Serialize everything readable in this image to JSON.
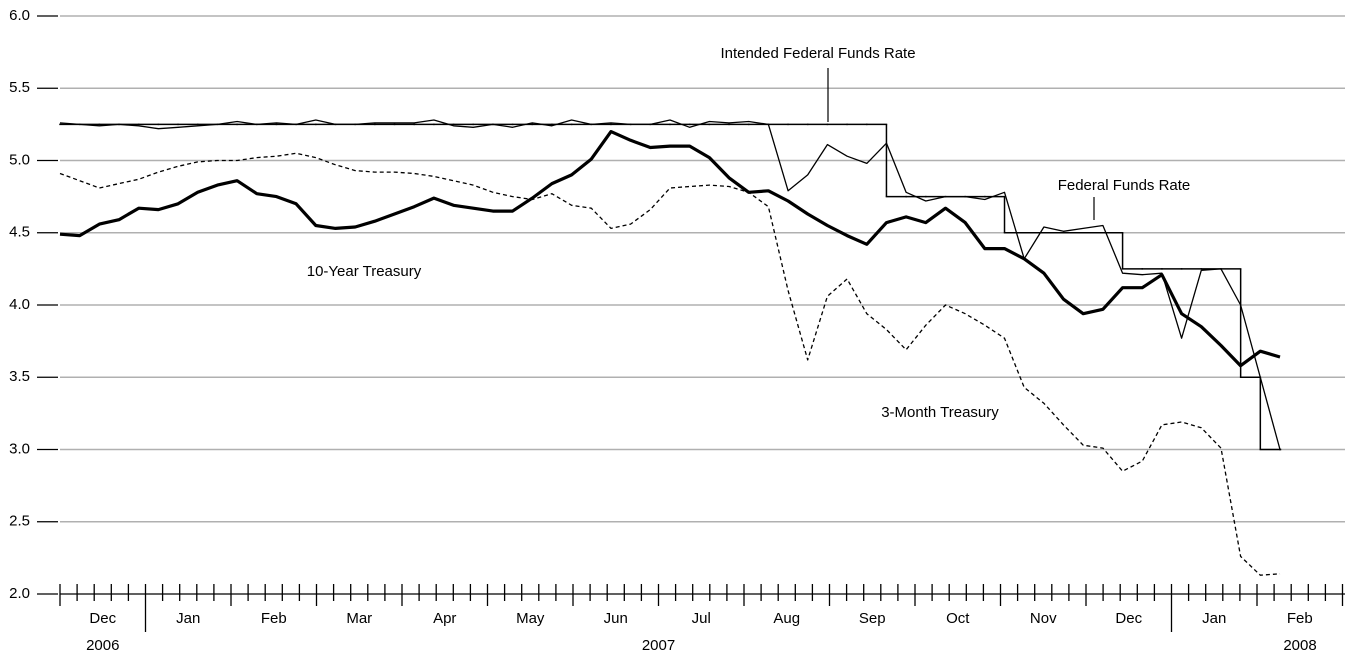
{
  "chart_data": {
    "type": "line",
    "categories": [
      null,
      null,
      null,
      null,
      null,
      null,
      null,
      null,
      null,
      null,
      null,
      null,
      null,
      null,
      null,
      null,
      null,
      null,
      null,
      null,
      null,
      null,
      null,
      null,
      null,
      null,
      null,
      null,
      null,
      null,
      null,
      null,
      null,
      null,
      null,
      null,
      null,
      null,
      null,
      null,
      null,
      null,
      null,
      null,
      null,
      null,
      null,
      null,
      null,
      null,
      null,
      null,
      null,
      null,
      null,
      null,
      null,
      null,
      null,
      null,
      null,
      null,
      null
    ],
    "months": [
      "Dec",
      "Jan",
      "Feb",
      "Mar",
      "Apr",
      "May",
      "Jun",
      "Jul",
      "Aug",
      "Sep",
      "Oct",
      "Nov",
      "Dec",
      "Jan",
      "Feb"
    ],
    "years": [
      "2006",
      "2007",
      "2008"
    ],
    "ylim": [
      2,
      6
    ],
    "yticks": [
      {
        "value": 2,
        "label": "2.0"
      },
      {
        "value": 2.5,
        "label": "2.5"
      },
      {
        "value": 3,
        "label": "3.0"
      },
      {
        "value": 3.5,
        "label": "3.5"
      },
      {
        "value": 4,
        "label": "4.0"
      },
      {
        "value": 4.5,
        "label": "4.5"
      },
      {
        "value": 5,
        "label": "5.0"
      },
      {
        "value": 5.5,
        "label": "5.5"
      },
      {
        "value": 6,
        "label": "6.0"
      }
    ],
    "grid": true,
    "series": [
      {
        "name": "Intended Federal Funds Rate",
        "color": "#000000",
        "style": "step",
        "values": [
          5.25,
          5.25,
          5.25,
          5.25,
          5.25,
          5.25,
          5.25,
          5.25,
          5.25,
          5.25,
          5.25,
          5.25,
          5.25,
          5.25,
          5.25,
          5.25,
          5.25,
          5.25,
          5.25,
          5.25,
          5.25,
          5.25,
          5.25,
          5.25,
          5.25,
          5.25,
          5.25,
          5.25,
          5.25,
          5.25,
          5.25,
          5.25,
          5.25,
          5.25,
          5.25,
          5.25,
          5.25,
          5.25,
          5.25,
          5.25,
          5.25,
          5.25,
          4.75,
          4.75,
          4.75,
          4.75,
          4.75,
          4.75,
          4.5,
          4.5,
          4.5,
          4.5,
          4.5,
          4.5,
          4.25,
          4.25,
          4.25,
          4.25,
          4.25,
          4.25,
          3.5,
          3,
          3
        ]
      },
      {
        "name": "Federal Funds Rate",
        "color": "#000000",
        "style": "thin",
        "values": [
          5.26,
          5.25,
          5.24,
          5.25,
          5.24,
          5.22,
          5.23,
          5.24,
          5.25,
          5.27,
          5.25,
          5.26,
          5.25,
          5.28,
          5.25,
          5.25,
          5.26,
          5.26,
          5.26,
          5.28,
          5.24,
          5.23,
          5.25,
          5.23,
          5.26,
          5.24,
          5.28,
          5.25,
          5.26,
          5.25,
          5.25,
          5.28,
          5.23,
          5.27,
          5.26,
          5.27,
          5.25,
          4.79,
          4.9,
          5.11,
          5.03,
          4.98,
          5.12,
          4.78,
          4.72,
          4.75,
          4.75,
          4.73,
          4.78,
          4.32,
          4.54,
          4.51,
          4.53,
          4.55,
          4.22,
          4.21,
          4.22,
          3.77,
          4.24,
          4.25,
          4,
          3.5,
          3
        ]
      },
      {
        "name": "10-Year Treasury",
        "color": "#000000",
        "style": "bold",
        "values": [
          4.49,
          4.48,
          4.56,
          4.59,
          4.67,
          4.66,
          4.7,
          4.78,
          4.83,
          4.86,
          4.77,
          4.75,
          4.7,
          4.55,
          4.53,
          4.54,
          4.58,
          4.63,
          4.68,
          4.74,
          4.69,
          4.67,
          4.65,
          4.65,
          4.74,
          4.84,
          4.9,
          5.01,
          5.2,
          5.14,
          5.09,
          5.1,
          5.1,
          5.02,
          4.88,
          4.78,
          4.79,
          4.72,
          4.63,
          4.55,
          4.48,
          4.42,
          4.57,
          4.61,
          4.57,
          4.67,
          4.57,
          4.39,
          4.39,
          4.32,
          4.22,
          4.04,
          3.94,
          3.97,
          4.12,
          4.12,
          4.21,
          3.94,
          3.85,
          3.72,
          3.58,
          3.68,
          3.64
        ]
      },
      {
        "name": "3-Month Treasury",
        "color": "#000000",
        "style": "dashed",
        "values": [
          4.91,
          4.86,
          4.81,
          4.84,
          4.87,
          4.92,
          4.96,
          4.99,
          5,
          5,
          5.02,
          5.03,
          5.05,
          5.02,
          4.97,
          4.93,
          4.92,
          4.92,
          4.91,
          4.89,
          4.86,
          4.83,
          4.78,
          4.75,
          4.73,
          4.77,
          4.69,
          4.67,
          4.53,
          4.56,
          4.66,
          4.81,
          4.82,
          4.83,
          4.82,
          4.78,
          4.68,
          4.1,
          3.62,
          4.06,
          4.18,
          3.94,
          3.83,
          3.69,
          3.86,
          4,
          3.94,
          3.86,
          3.77,
          3.43,
          3.32,
          3.17,
          3.03,
          3.01,
          2.85,
          2.92,
          3.17,
          3.19,
          3.15,
          3.01,
          2.26,
          2.13,
          2.14
        ]
      }
    ]
  }
}
